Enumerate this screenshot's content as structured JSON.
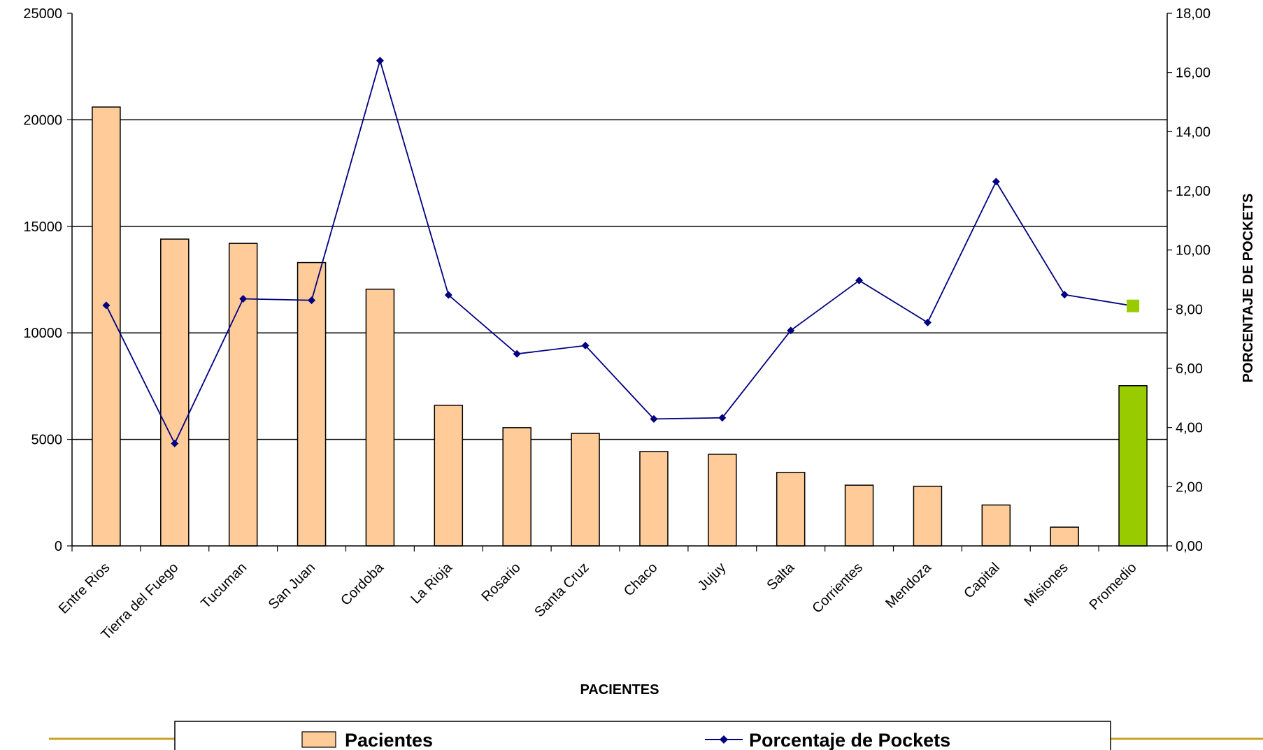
{
  "chart_data": {
    "type": "bar",
    "categories": [
      "Entre Rios",
      "Tierra del Fuego",
      "Tucuman",
      "San Juan",
      "Cordoba",
      "La Rioja",
      "Rosario",
      "Santa Cruz",
      "Chaco",
      "Jujuy",
      "Salta",
      "Corrientes",
      "Mendoza",
      "Capital",
      "Misiones",
      "Promedio"
    ],
    "series": [
      {
        "name": "Pacientes",
        "type": "bar",
        "axis": "left",
        "values": [
          20600,
          14400,
          14200,
          13300,
          12050,
          6600,
          5550,
          5280,
          4430,
          4300,
          3450,
          2850,
          2800,
          1920,
          880,
          7520
        ],
        "color": "#FFCC99",
        "highlight_color": "#99CC00"
      },
      {
        "name": "Porcentaje de Pockets",
        "type": "line",
        "axis": "right",
        "values": [
          8.13,
          3.46,
          8.35,
          8.3,
          16.4,
          8.48,
          6.49,
          6.77,
          4.29,
          4.33,
          7.28,
          8.97,
          7.55,
          12.31,
          8.49,
          8.11
        ],
        "color": "#000080",
        "highlight_color": "#99CC00"
      }
    ],
    "xlabel": "PACIENTES",
    "ylabel_right": "PORCENTAJE DE POCKETS",
    "ylim_left": [
      0,
      25000
    ],
    "yticks_left": [
      "0",
      "5000",
      "10000",
      "15000",
      "20000",
      "25000"
    ],
    "ylim_right": [
      0,
      18
    ],
    "yticks_right": [
      "0,00",
      "2,00",
      "4,00",
      "6,00",
      "8,00",
      "10,00",
      "12,00",
      "14,00",
      "16,00",
      "18,00"
    ],
    "grid": true,
    "legend_position": "bottom"
  }
}
